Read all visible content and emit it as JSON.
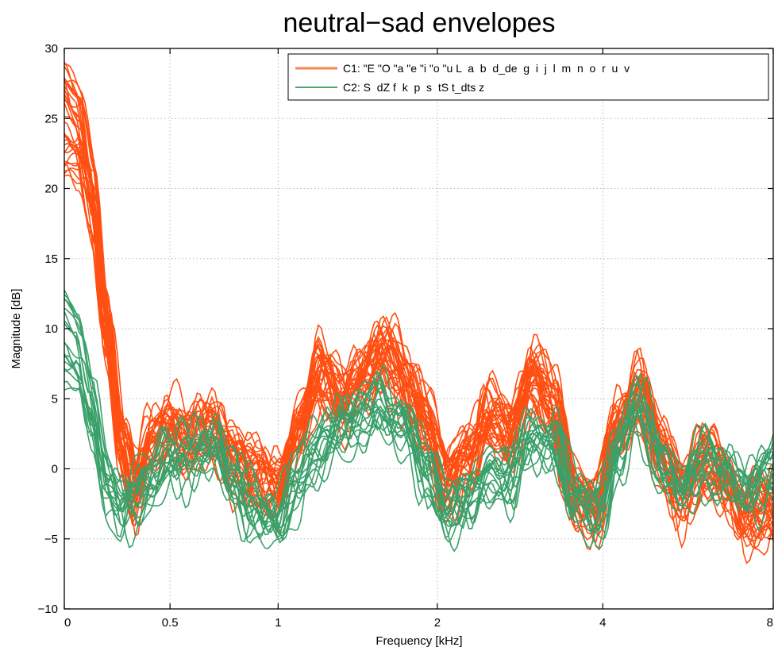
{
  "chart_data": {
    "type": "line",
    "title": "neutral−sad envelopes",
    "xlabel": "Frequency [kHz]",
    "ylabel": "Magnitude [dB]",
    "ylim": [
      -10,
      30
    ],
    "y_ticks": [
      "−10",
      "−5",
      "0",
      "5",
      "10",
      "15",
      "20",
      "25",
      "30"
    ],
    "x_ticks": [
      "0",
      "0.5",
      "1",
      "2",
      "4",
      "8"
    ],
    "x_tick_positions": [
      0,
      0.1491,
      0.3016,
      0.5262,
      0.7596,
      1.0
    ],
    "x_scale": "warped frequency (0–8 kHz)",
    "grid": true,
    "legend_position": "top-right",
    "colors": {
      "C1": "#ff4f12",
      "C2": "#3aa06a",
      "C1_legend": "#f5864f",
      "C2_legend": "#4ea672"
    },
    "series": [
      {
        "name": "C1: \"E \"O \"a \"e \"i \"o \"u L  a  b  d_de  g  i  j  l  m  n  o  r  u  v",
        "count": 32,
        "mean_envelope": {
          "x": [
            0,
            0.02,
            0.04,
            0.06,
            0.08,
            0.1,
            0.12,
            0.15,
            0.18,
            0.21,
            0.24,
            0.27,
            0.3,
            0.33,
            0.36,
            0.39,
            0.42,
            0.45,
            0.48,
            0.51,
            0.54,
            0.57,
            0.6,
            0.63,
            0.66,
            0.69,
            0.72,
            0.75,
            0.78,
            0.81,
            0.84,
            0.87,
            0.9,
            0.93,
            0.96,
            1.0
          ],
          "y": [
            25,
            24,
            19,
            10,
            2,
            -1.5,
            1.5,
            3,
            2,
            2.5,
            1,
            -1,
            -1.5,
            3,
            6.5,
            5,
            6.5,
            8,
            6.5,
            3,
            -1,
            1,
            3.5,
            2.5,
            6.5,
            4.5,
            -2,
            -3,
            3,
            5.5,
            1,
            -1.5,
            0.5,
            -1,
            -3,
            -3
          ]
        }
      },
      {
        "name": "C2: S  dZ f  k  p  s  tS t_dts z",
        "count": 18,
        "mean_envelope": {
          "x": [
            0,
            0.02,
            0.04,
            0.06,
            0.08,
            0.1,
            0.12,
            0.15,
            0.18,
            0.21,
            0.24,
            0.27,
            0.3,
            0.33,
            0.36,
            0.39,
            0.42,
            0.45,
            0.48,
            0.51,
            0.54,
            0.57,
            0.6,
            0.63,
            0.66,
            0.69,
            0.72,
            0.75,
            0.78,
            0.81,
            0.84,
            0.87,
            0.9,
            0.93,
            0.96,
            1.0
          ],
          "y": [
            9,
            8,
            4,
            -1,
            -3,
            -2,
            -1,
            0.5,
            1,
            1.5,
            -1,
            -3,
            -4,
            -1,
            1.5,
            3,
            3.5,
            4.5,
            3,
            0,
            -3,
            -2.5,
            0,
            -1,
            2,
            2.5,
            -2.5,
            -3.5,
            1,
            4.5,
            0.5,
            -1.5,
            0.5,
            -0.5,
            -1.5,
            0
          ]
        }
      }
    ]
  }
}
